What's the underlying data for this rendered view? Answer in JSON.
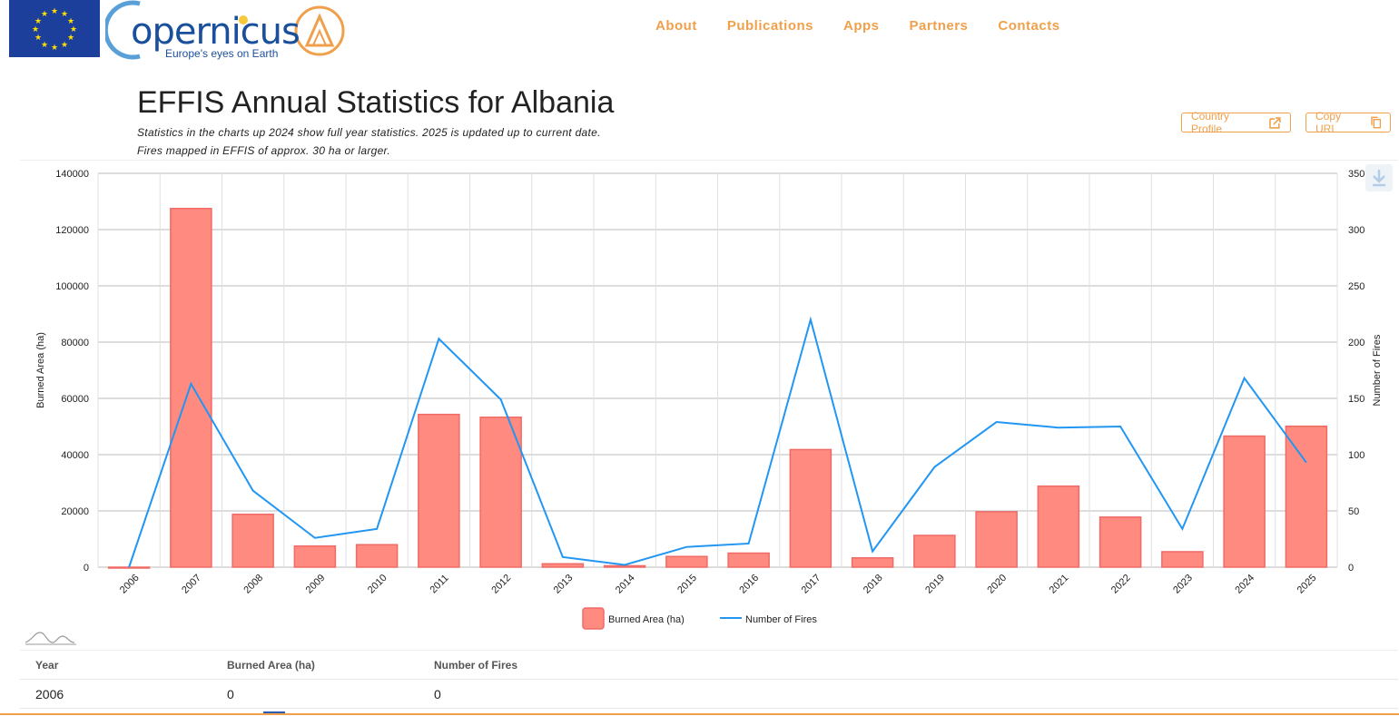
{
  "header": {
    "logo_word": "opernicus",
    "logo_tagline": "Europe's eyes on Earth",
    "nav": [
      "About",
      "Publications",
      "Apps",
      "Partners",
      "Contacts"
    ]
  },
  "page": {
    "title": "EFFIS Annual Statistics for Albania",
    "subtitle_1": "Statistics in the charts up 2024 show full year statistics. 2025 is updated up to current date.",
    "subtitle_2": "Fires mapped in EFFIS of approx. 30 ha or larger.",
    "country_profile_label": "Country Profile",
    "copy_url_label": "Copy URL"
  },
  "icons": {
    "country_profile": "external-link-icon",
    "copy_url": "copy-icon",
    "download": "download-icon",
    "chart_type": "line-chart-icon"
  },
  "colors": {
    "accent": "#f0a04b",
    "bar_fill": "#ff8a80",
    "bar_stroke": "#f06b66",
    "line": "#2196f3"
  },
  "chart_data": {
    "type": "bar",
    "categories": [
      "2006",
      "2007",
      "2008",
      "2009",
      "2010",
      "2011",
      "2012",
      "2013",
      "2014",
      "2015",
      "2016",
      "2017",
      "2018",
      "2019",
      "2020",
      "2021",
      "2022",
      "2023",
      "2024",
      "2025"
    ],
    "series": [
      {
        "name": "Burned Area (ha)",
        "type": "bar",
        "axis": "left",
        "values": [
          0,
          127500,
          18800,
          7500,
          8000,
          54300,
          53300,
          1200,
          500,
          3800,
          5000,
          41800,
          3300,
          11300,
          19700,
          28800,
          17800,
          5500,
          46600,
          50100
        ]
      },
      {
        "name": "Number of Fires",
        "type": "line",
        "axis": "right",
        "values": [
          0,
          163,
          68,
          26,
          34,
          203,
          149,
          9,
          2,
          18,
          21,
          220,
          14,
          89,
          129,
          124,
          125,
          34,
          168,
          93
        ]
      }
    ],
    "ylabel": "Burned Area (ha)",
    "y2label": "Number of Fires",
    "ylim": [
      0,
      140000
    ],
    "y2lim": [
      0,
      350
    ],
    "yticks": [
      0,
      20000,
      40000,
      60000,
      80000,
      100000,
      120000,
      140000
    ],
    "y2ticks": [
      0,
      50,
      100,
      150,
      200,
      250,
      300,
      350
    ],
    "grid": true,
    "legend": "bottom-center"
  },
  "table": {
    "headers": [
      "Year",
      "Burned Area (ha)",
      "Number of Fires"
    ],
    "rows": [
      [
        "2006",
        "0",
        "0"
      ]
    ]
  }
}
